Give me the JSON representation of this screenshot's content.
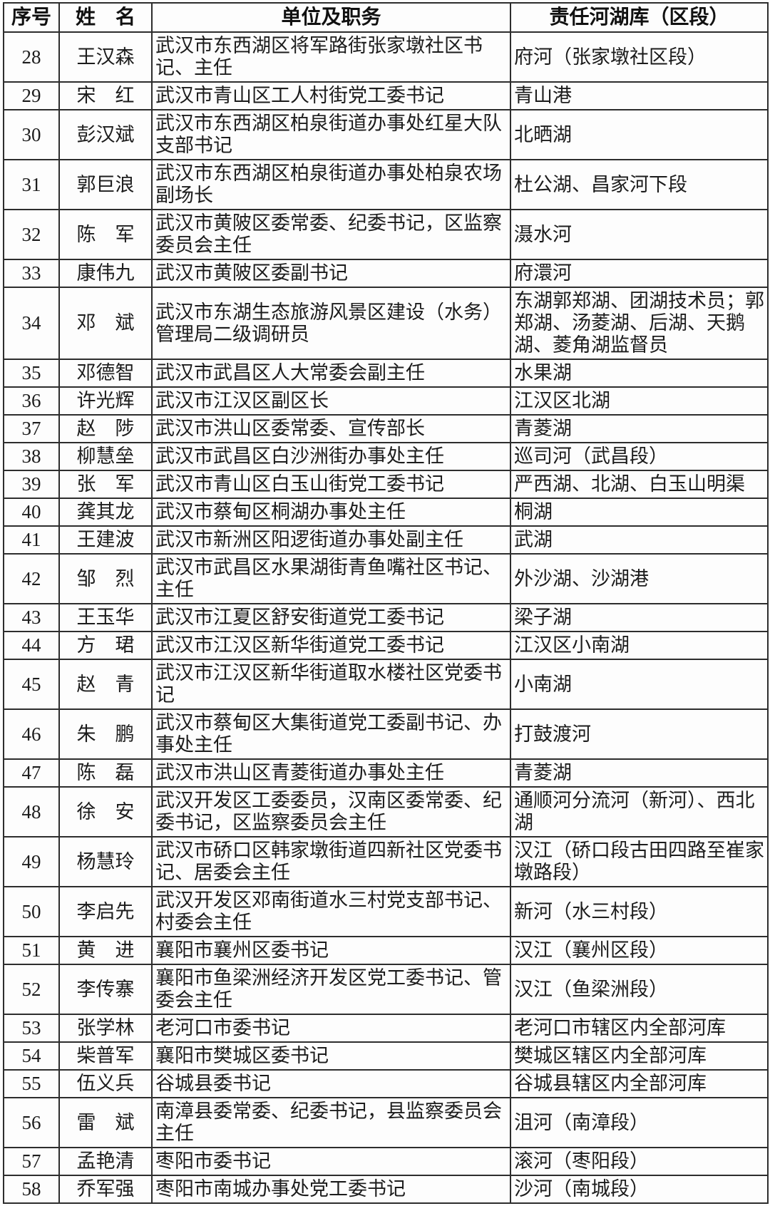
{
  "table": {
    "headers": {
      "index": "序号",
      "name": "姓　名",
      "unit": "单位及职务",
      "river": "责任河湖库（区段）"
    },
    "rows": [
      {
        "no": "28",
        "name": "王汉森",
        "unit": "武汉市东西湖区将军路街张家墩社区书记、主任",
        "river": "府河（张家墩社区段）"
      },
      {
        "no": "29",
        "name": "宋　红",
        "unit": "武汉市青山区工人村街党工委书记",
        "river": "青山港"
      },
      {
        "no": "30",
        "name": "彭汉斌",
        "unit": "武汉市东西湖区柏泉街道办事处红星大队支部书记",
        "river": "北晒湖"
      },
      {
        "no": "31",
        "name": "郭巨浪",
        "unit": "武汉市东西湖区柏泉街道办事处柏泉农场副场长",
        "river": "杜公湖、昌家河下段"
      },
      {
        "no": "32",
        "name": "陈　军",
        "unit": "武汉市黄陂区委常委、纪委书记，区监察委员会主任",
        "river": "滠水河"
      },
      {
        "no": "33",
        "name": "康伟九",
        "unit": "武汉市黄陂区委副书记",
        "river": "府澴河"
      },
      {
        "no": "34",
        "name": "邓　斌",
        "unit": "武汉市东湖生态旅游风景区建设（水务）管理局二级调研员",
        "river": "东湖郭郑湖、团湖技术员；郭郑湖、汤菱湖、后湖、天鹅湖、菱角湖监督员"
      },
      {
        "no": "35",
        "name": "邓德智",
        "unit": "武汉市武昌区人大常委会副主任",
        "river": "水果湖"
      },
      {
        "no": "36",
        "name": "许光辉",
        "unit": "武汉市江汉区副区长",
        "river": "江汉区北湖"
      },
      {
        "no": "37",
        "name": "赵　陟",
        "unit": "武汉市洪山区委常委、宣传部长",
        "river": "青菱湖"
      },
      {
        "no": "38",
        "name": "柳慧垒",
        "unit": "武汉市武昌区白沙洲街办事处主任",
        "river": "巡司河（武昌段）"
      },
      {
        "no": "39",
        "name": "张　军",
        "unit": "武汉市青山区白玉山街党工委书记",
        "river": "严西湖、北湖、白玉山明渠"
      },
      {
        "no": "40",
        "name": "龚其龙",
        "unit": "武汉市蔡甸区桐湖办事处主任",
        "river": "桐湖"
      },
      {
        "no": "41",
        "name": "王建波",
        "unit": "武汉市新洲区阳逻街道办事处副主任",
        "river": "武湖"
      },
      {
        "no": "42",
        "name": "邹　烈",
        "unit": "武汉市武昌区水果湖街青鱼嘴社区书记、主任",
        "river": "外沙湖、沙湖港"
      },
      {
        "no": "43",
        "name": "王玉华",
        "unit": "武汉市江夏区舒安街道党工委书记",
        "river": "梁子湖"
      },
      {
        "no": "44",
        "name": "方　珺",
        "unit": "武汉市江汉区新华街道党工委书记",
        "river": "江汉区小南湖"
      },
      {
        "no": "45",
        "name": "赵　青",
        "unit": "武汉市江汉区新华街道取水楼社区党委书记",
        "river": "小南湖"
      },
      {
        "no": "46",
        "name": "朱　鹏",
        "unit": "武汉市蔡甸区大集街道党工委副书记、办事处主任",
        "river": "打鼓渡河"
      },
      {
        "no": "47",
        "name": "陈　磊",
        "unit": "武汉市洪山区青菱街道办事处主任",
        "river": "青菱湖"
      },
      {
        "no": "48",
        "name": "徐　安",
        "unit": "武汉开发区工委委员，汉南区委常委、纪委书记，区监察委员会主任",
        "river": "通顺河分流河（新河）、西北湖"
      },
      {
        "no": "49",
        "name": "杨慧玲",
        "unit": "武汉市硚口区韩家墩街道四新社区党委书记、居委会主任",
        "river": "汉江（硚口段古田四路至崔家墩路段）"
      },
      {
        "no": "50",
        "name": "李启先",
        "unit": "武汉开发区邓南街道水三村党支部书记、村委会主任",
        "river": "新河（水三村段）"
      },
      {
        "no": "51",
        "name": "黄　进",
        "unit": "襄阳市襄州区委书记",
        "river": "汉江（襄州区段）"
      },
      {
        "no": "52",
        "name": "李传寨",
        "unit": "襄阳市鱼梁洲经济开发区党工委书记、管委会主任",
        "river": "汉江（鱼梁洲段）"
      },
      {
        "no": "53",
        "name": "张学林",
        "unit": "老河口市委书记",
        "river": "老河口市辖区内全部河库"
      },
      {
        "no": "54",
        "name": "柴普军",
        "unit": "襄阳市樊城区委书记",
        "river": "樊城区辖区内全部河库"
      },
      {
        "no": "55",
        "name": "伍义兵",
        "unit": "谷城县委书记",
        "river": "谷城县辖区内全部河库"
      },
      {
        "no": "56",
        "name": "雷　斌",
        "unit": "南漳县委常委、纪委书记，县监察委员会主任",
        "river": "沮河（南漳段）"
      },
      {
        "no": "57",
        "name": "孟艳清",
        "unit": "枣阳市委书记",
        "river": "滚河（枣阳段）"
      },
      {
        "no": "58",
        "name": "乔军强",
        "unit": "枣阳市南城办事处党工委书记",
        "river": "沙河（南城段）"
      }
    ]
  }
}
